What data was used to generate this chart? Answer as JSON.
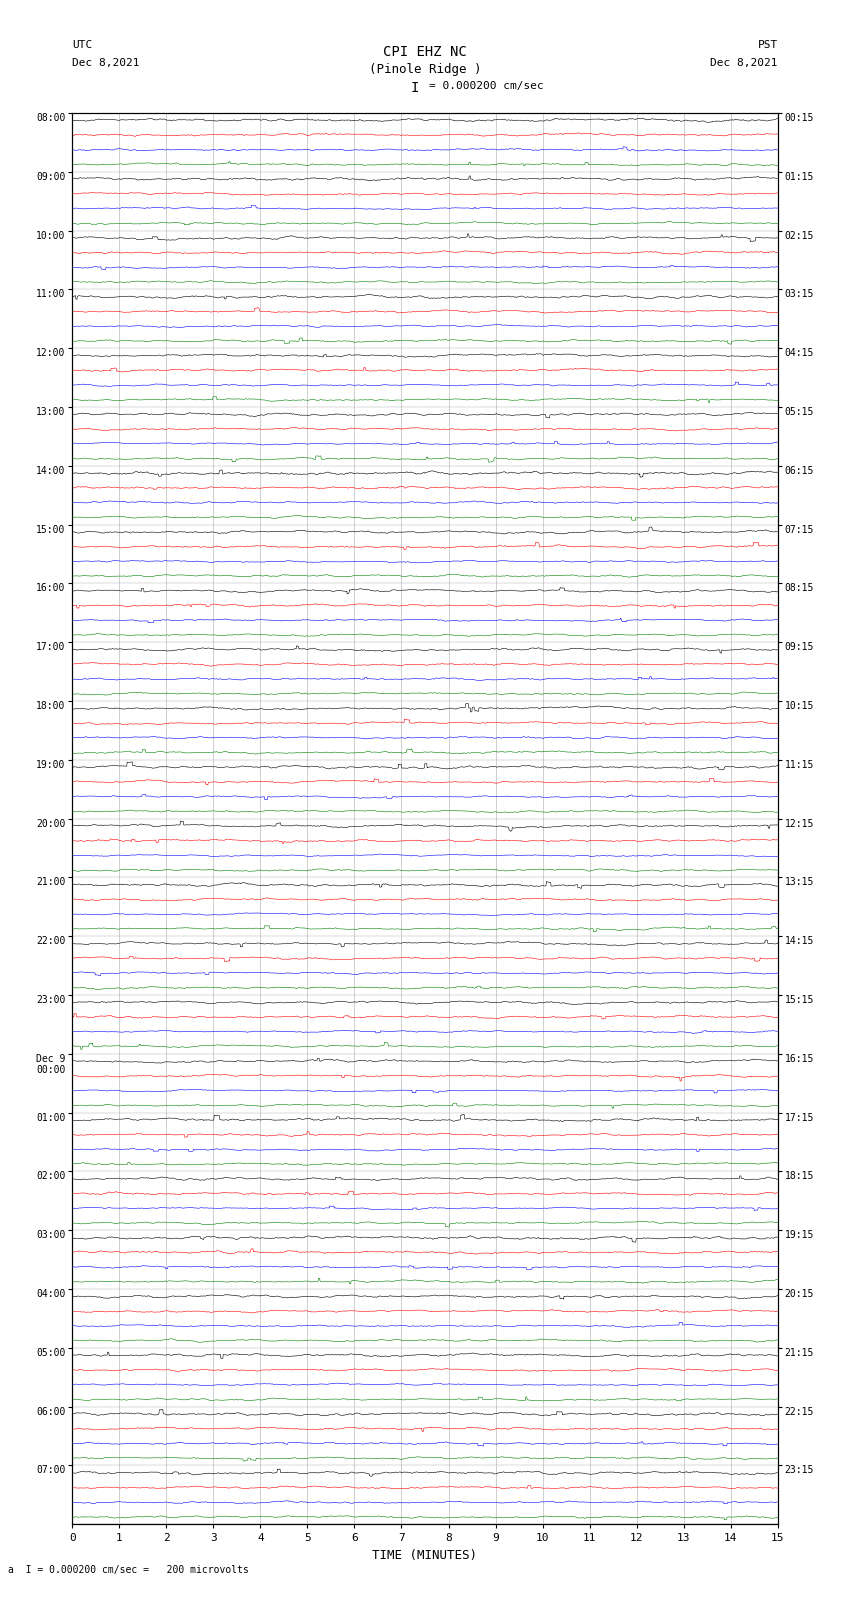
{
  "title_line1": "CPI EHZ NC",
  "title_line2": "(Pinole Ridge )",
  "scale_label": "= 0.000200 cm/sec",
  "left_header_line1": "UTC",
  "left_header_line2": "Dec 8,2021",
  "right_header_line1": "PST",
  "right_header_line2": "Dec 8,2021",
  "bottom_label": "TIME (MINUTES)",
  "bottom_note": "a  I = 0.000200 cm/sec =   200 microvolts",
  "xlabel_ticks": [
    0,
    1,
    2,
    3,
    4,
    5,
    6,
    7,
    8,
    9,
    10,
    11,
    12,
    13,
    14,
    15
  ],
  "left_times": [
    "08:00",
    "09:00",
    "10:00",
    "11:00",
    "12:00",
    "13:00",
    "14:00",
    "15:00",
    "16:00",
    "17:00",
    "18:00",
    "19:00",
    "20:00",
    "21:00",
    "22:00",
    "23:00",
    "Dec 9\n00:00",
    "01:00",
    "02:00",
    "03:00",
    "04:00",
    "05:00",
    "06:00",
    "07:00"
  ],
  "right_times": [
    "00:15",
    "01:15",
    "02:15",
    "03:15",
    "04:15",
    "05:15",
    "06:15",
    "07:15",
    "08:15",
    "09:15",
    "10:15",
    "11:15",
    "12:15",
    "13:15",
    "14:15",
    "15:15",
    "16:15",
    "17:15",
    "18:15",
    "19:15",
    "20:15",
    "21:15",
    "22:15",
    "23:15"
  ],
  "n_rows": 24,
  "traces_per_row": 4,
  "colors": [
    "black",
    "red",
    "blue",
    "green"
  ],
  "bg_color": "white",
  "fig_width": 8.5,
  "fig_height": 16.13,
  "dpi": 100,
  "noise_amps": [
    0.012,
    0.01,
    0.008,
    0.009
  ],
  "grid_color": "#aaaaaa",
  "trace_lw": 0.4
}
